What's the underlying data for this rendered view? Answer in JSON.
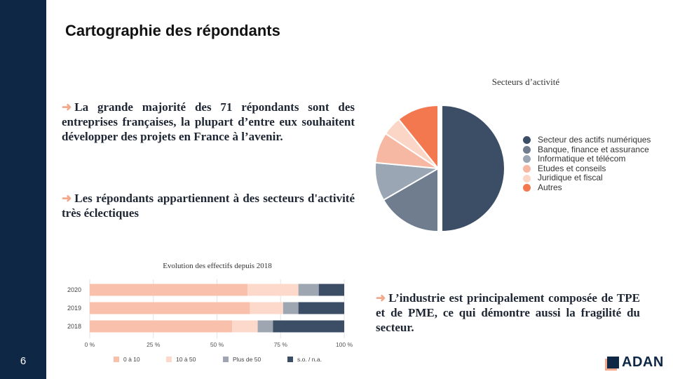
{
  "page": {
    "number": "6",
    "title": "Cartographie des répondants"
  },
  "paragraphs": {
    "p1": "La grande majorité des 71 répondants sont des entreprises françaises, la plupart d’entre eux souhaitent développer des projets en France à l’avenir.",
    "p2": "Les répondants appartiennent à des secteurs d'activité très éclectiques",
    "p3": "L’industrie est principalement composée de TPE et de PME, ce qui démontre aussi la fragilité du secteur.",
    "arrow_glyph": "➜"
  },
  "logo": {
    "text": "ADAN"
  },
  "colors": {
    "sidebar": "#0e2744",
    "accent": "#f3a98c"
  },
  "chart_data": [
    {
      "type": "pie",
      "title": "Secteurs d’activité",
      "legend_position": "right",
      "labels": [
        "Secteur des actifs numériques",
        "Banque, finance et assurance",
        "Informatique et télécom",
        "Etudes et conseils",
        "Juridique et fiscal",
        "Autres"
      ],
      "values": [
        51,
        17,
        10,
        8,
        5,
        11
      ],
      "colors": [
        "#3c4d66",
        "#6f7d8f",
        "#9aa6b3",
        "#f6b8a3",
        "#fbd6c7",
        "#f4784f"
      ]
    },
    {
      "type": "bar",
      "orientation": "horizontal",
      "stacked": true,
      "title": "Evolution des effectifs depuis 2018",
      "categories": [
        "2020",
        "2019",
        "2018"
      ],
      "xlim": [
        0,
        100
      ],
      "xticks": [
        "0 %",
        "25 %",
        "50 %",
        "75 %",
        "100 %"
      ],
      "grid": true,
      "legend_position": "bottom",
      "series": [
        {
          "name": "0 à 10",
          "color": "#f9c1ab",
          "values": [
            62,
            63,
            56
          ]
        },
        {
          "name": "10 à 50",
          "color": "#fcd9cb",
          "values": [
            20,
            13,
            10
          ]
        },
        {
          "name": "Plus de 50",
          "color": "#9ea7b1",
          "values": [
            8,
            6,
            6
          ]
        },
        {
          "name": "s.o. / n.a.",
          "color": "#3c4d66",
          "values": [
            10,
            18,
            28
          ]
        }
      ]
    }
  ]
}
